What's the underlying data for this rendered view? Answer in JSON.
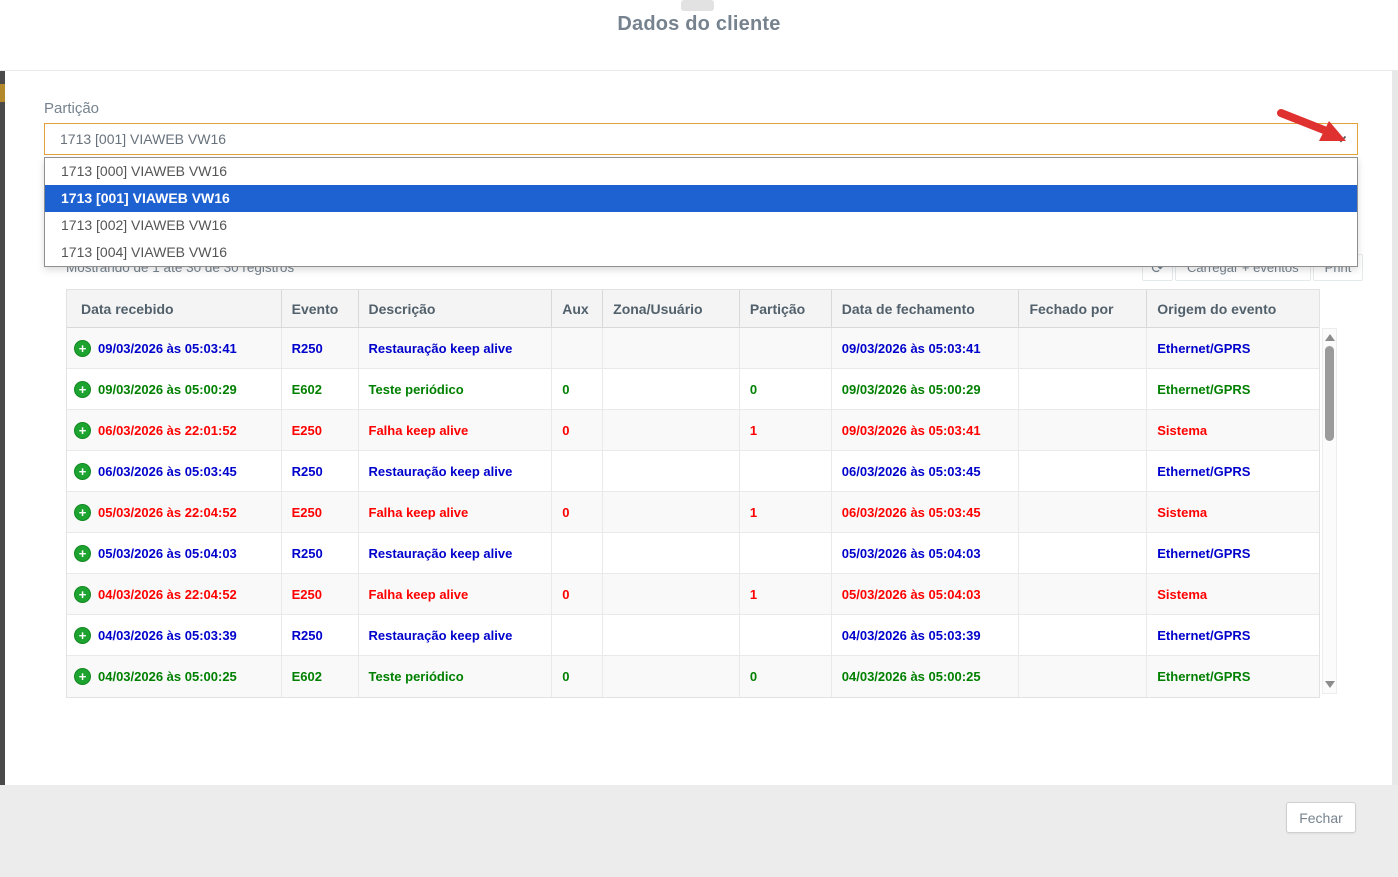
{
  "modal": {
    "title": "Dados do cliente",
    "close_label": "Fechar"
  },
  "partition": {
    "label": "Partição",
    "selected_value": "1713 [001] VIAWEB VW16",
    "options": [
      {
        "label": "1713 [000] VIAWEB VW16",
        "selected": false
      },
      {
        "label": "1713 [001] VIAWEB VW16",
        "selected": true
      },
      {
        "label": "1713 [002] VIAWEB VW16",
        "selected": false
      },
      {
        "label": "1713 [004] VIAWEB VW16",
        "selected": false
      }
    ]
  },
  "toolbar": {
    "records_info": "Mostrando de 1 até 30 de 30 registros",
    "refresh_glyph": "⟳",
    "load_events_label": "Carregar + eventos",
    "print_label": "Print"
  },
  "table": {
    "columns": [
      "Data recebido",
      "Evento",
      "Descrição",
      "Aux",
      "Zona/Usuário",
      "Partição",
      "Data de fechamento",
      "Fechado por",
      "Origem do evento"
    ],
    "rows": [
      {
        "color": "blue",
        "data_recebido": "09/03/2026 às 05:03:41",
        "evento": "R250",
        "descricao": "Restauração keep alive",
        "aux": "",
        "zona_usuario": "",
        "particao": "",
        "data_fechamento": "09/03/2026 às 05:03:41",
        "fechado_por": "",
        "origem": "Ethernet/GPRS"
      },
      {
        "color": "green",
        "data_recebido": "09/03/2026 às 05:00:29",
        "evento": "E602",
        "descricao": "Teste periódico",
        "aux": "0",
        "zona_usuario": "",
        "particao": "0",
        "data_fechamento": "09/03/2026 às 05:00:29",
        "fechado_por": "",
        "origem": "Ethernet/GPRS"
      },
      {
        "color": "red",
        "data_recebido": "06/03/2026 às 22:01:52",
        "evento": "E250",
        "descricao": "Falha keep alive",
        "aux": "0",
        "zona_usuario": "",
        "particao": "1",
        "data_fechamento": "09/03/2026 às 05:03:41",
        "fechado_por": "",
        "origem": "Sistema"
      },
      {
        "color": "blue",
        "data_recebido": "06/03/2026 às 05:03:45",
        "evento": "R250",
        "descricao": "Restauração keep alive",
        "aux": "",
        "zona_usuario": "",
        "particao": "",
        "data_fechamento": "06/03/2026 às 05:03:45",
        "fechado_por": "",
        "origem": "Ethernet/GPRS"
      },
      {
        "color": "red",
        "data_recebido": "05/03/2026 às 22:04:52",
        "evento": "E250",
        "descricao": "Falha keep alive",
        "aux": "0",
        "zona_usuario": "",
        "particao": "1",
        "data_fechamento": "06/03/2026 às 05:03:45",
        "fechado_por": "",
        "origem": "Sistema"
      },
      {
        "color": "blue",
        "data_recebido": "05/03/2026 às 05:04:03",
        "evento": "R250",
        "descricao": "Restauração keep alive",
        "aux": "",
        "zona_usuario": "",
        "particao": "",
        "data_fechamento": "05/03/2026 às 05:04:03",
        "fechado_por": "",
        "origem": "Ethernet/GPRS"
      },
      {
        "color": "red",
        "data_recebido": "04/03/2026 às 22:04:52",
        "evento": "E250",
        "descricao": "Falha keep alive",
        "aux": "0",
        "zona_usuario": "",
        "particao": "1",
        "data_fechamento": "05/03/2026 às 05:04:03",
        "fechado_por": "",
        "origem": "Sistema"
      },
      {
        "color": "blue",
        "data_recebido": "04/03/2026 às 05:03:39",
        "evento": "R250",
        "descricao": "Restauração keep alive",
        "aux": "",
        "zona_usuario": "",
        "particao": "",
        "data_fechamento": "04/03/2026 às 05:03:39",
        "fechado_por": "",
        "origem": "Ethernet/GPRS"
      },
      {
        "color": "green",
        "data_recebido": "04/03/2026 às 05:00:25",
        "evento": "E602",
        "descricao": "Teste periódico",
        "aux": "0",
        "zona_usuario": "",
        "particao": "0",
        "data_fechamento": "04/03/2026 às 05:00:25",
        "fechado_por": "",
        "origem": "Ethernet/GPRS"
      }
    ]
  },
  "colors": {
    "status_blue": "#0000cc",
    "status_green": "#008000",
    "status_red": "#ff0000",
    "select_focus_border": "#e2a33d",
    "option_selected_bg": "#1e62d2",
    "annotation_arrow": "#e03131",
    "plus_icon_green": "#1da330"
  }
}
